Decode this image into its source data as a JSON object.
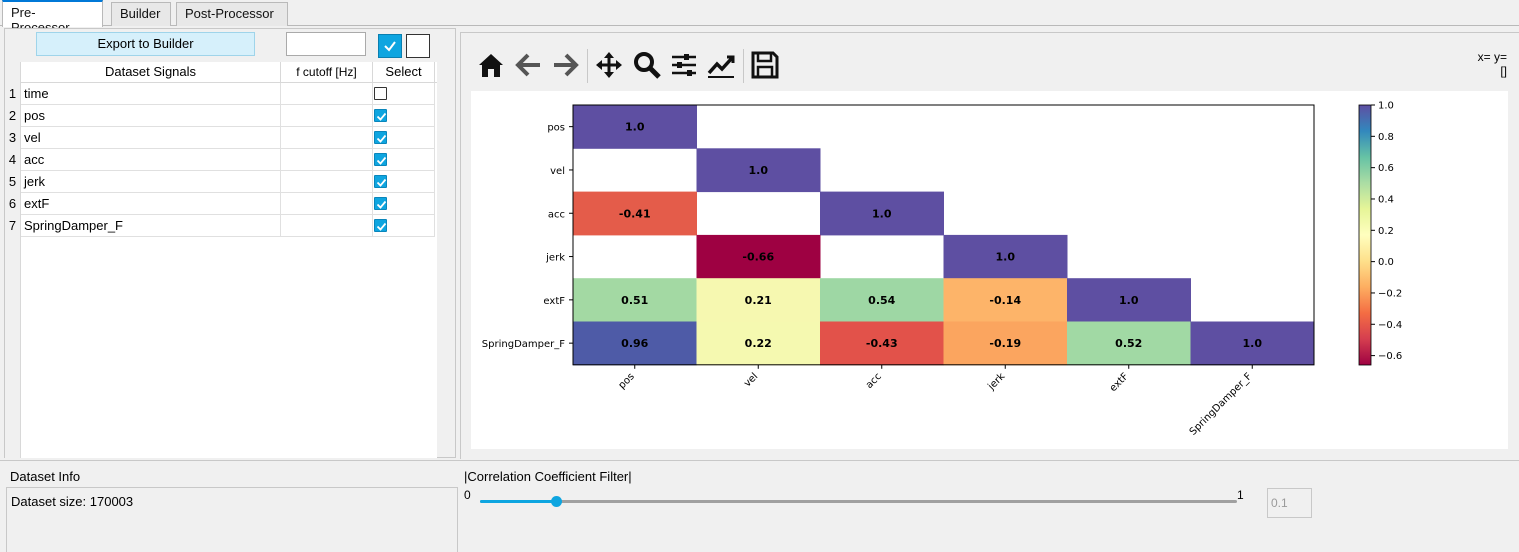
{
  "tabs": [
    {
      "label": "Pre-Processor",
      "active": true
    },
    {
      "label": "Builder",
      "active": false
    },
    {
      "label": "Post-Processor",
      "active": false
    }
  ],
  "left": {
    "export_button": "Export to Builder",
    "cutoff_input_value": "",
    "select_all_checked": true,
    "table": {
      "headers": [
        "Dataset Signals",
        "f cutoff [Hz]",
        "Select"
      ],
      "rows": [
        {
          "n": "1",
          "signal": "time",
          "cutoff": "",
          "selected": false
        },
        {
          "n": "2",
          "signal": "pos",
          "cutoff": "",
          "selected": true
        },
        {
          "n": "3",
          "signal": "vel",
          "cutoff": "",
          "selected": true
        },
        {
          "n": "4",
          "signal": "acc",
          "cutoff": "",
          "selected": true
        },
        {
          "n": "5",
          "signal": "jerk",
          "cutoff": "",
          "selected": true
        },
        {
          "n": "6",
          "signal": "extF",
          "cutoff": "",
          "selected": true
        },
        {
          "n": "7",
          "signal": "SpringDamper_F",
          "cutoff": "",
          "selected": true
        }
      ]
    }
  },
  "toolbar": {
    "icons": [
      "home-icon",
      "back-arrow-icon",
      "forward-arrow-icon",
      "pan-move-icon",
      "zoom-magnifier-icon",
      "configure-subplots-icon",
      "edit-axis-line-icon",
      "save-floppy-icon"
    ],
    "coords_line1": "x= y=",
    "coords_line2": "[]"
  },
  "chart_data": {
    "type": "heatmap",
    "rows": [
      "pos",
      "vel",
      "acc",
      "jerk",
      "extF",
      "SpringDamper_F"
    ],
    "cols": [
      "pos",
      "vel",
      "acc",
      "jerk",
      "extF",
      "SpringDamper_F"
    ],
    "matrix": [
      [
        1.0,
        null,
        null,
        null,
        null,
        null
      ],
      [
        null,
        1.0,
        null,
        null,
        null,
        null
      ],
      [
        -0.41,
        null,
        1.0,
        null,
        null,
        null
      ],
      [
        null,
        -0.66,
        null,
        1.0,
        null,
        null
      ],
      [
        0.51,
        0.21,
        0.54,
        -0.14,
        1.0,
        null
      ],
      [
        0.96,
        0.22,
        -0.43,
        -0.19,
        0.52,
        1.0
      ]
    ],
    "labels": [
      [
        "1.0",
        "",
        "",
        "",
        "",
        ""
      ],
      [
        "",
        "1.0",
        "",
        "",
        "",
        ""
      ],
      [
        "-0.41",
        "",
        "1.0",
        "",
        "",
        ""
      ],
      [
        "",
        "-0.66",
        "",
        "1.0",
        "",
        ""
      ],
      [
        "0.51",
        "0.21",
        "0.54",
        "-0.14",
        "1.0",
        ""
      ],
      [
        "0.96",
        "0.22",
        "-0.43",
        "-0.19",
        "0.52",
        "1.0"
      ]
    ],
    "colorbar": {
      "min": -0.66,
      "max": 1.0,
      "ticks": [
        "1.0",
        "0.8",
        "0.6",
        "0.4",
        "0.2",
        "0.0",
        "−0.2",
        "−0.4",
        "−0.6"
      ],
      "tick_values": [
        1.0,
        0.8,
        0.6,
        0.4,
        0.2,
        0.0,
        -0.2,
        -0.4,
        -0.6
      ],
      "colormap": "Spectral"
    },
    "colors": {
      "1.0": "#5e4fa2",
      "0.96": "#4e5ba7",
      "-0.41": "#e45c4a",
      "-0.66": "#9e0142",
      "0.51": "#a3d9a3",
      "0.21": "#f6f8b0",
      "0.54": "#9ed7a4",
      "-0.14": "#fdb469",
      "0.22": "#f5f9b0",
      "-0.43": "#e2524a",
      "-0.19": "#fba55f",
      "0.52": "#a1d9a4"
    }
  },
  "bottom": {
    "dataset_info_title": "Dataset Info",
    "dataset_info_text": "Dataset size: 170003",
    "cc_title": "|Correlation Coefficient Filter|",
    "slider_min": "0",
    "slider_max": "1",
    "slider_value": 0.1,
    "threshold_value": "0.1"
  }
}
